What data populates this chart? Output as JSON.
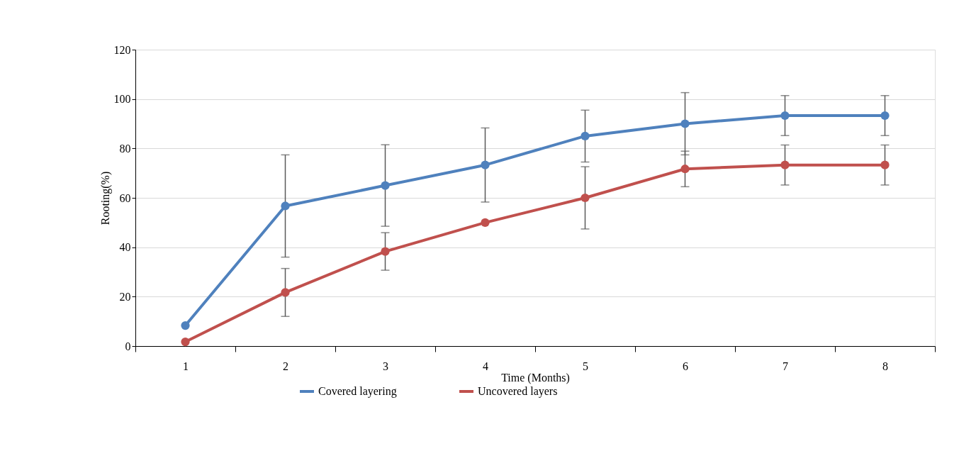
{
  "chart_data": {
    "type": "line",
    "xlabel": "Time (Months)",
    "ylabel": "Rooting(%)",
    "categories": [
      "1",
      "2",
      "3",
      "4",
      "5",
      "6",
      "7",
      "8"
    ],
    "ylim": [
      0,
      120
    ],
    "yticks": [
      0,
      20,
      40,
      60,
      80,
      100,
      120
    ],
    "grid": "y",
    "legend": "bottom",
    "marker": "circle",
    "line_style": "solid",
    "series": [
      {
        "name": "Covered layering",
        "color": "#4f81bd",
        "values": [
          8.3,
          56.7,
          65,
          73.3,
          85,
          90,
          93.3,
          93.3
        ],
        "errors": [
          null,
          20.7,
          16.5,
          15,
          10.5,
          12.6,
          8.1,
          8.1
        ]
      },
      {
        "name": "Uncovered layers",
        "color": "#c0504d",
        "values": [
          1.7,
          21.7,
          38.3,
          50,
          60,
          71.7,
          73.3,
          73.3
        ],
        "errors": [
          null,
          9.7,
          7.6,
          null,
          12.6,
          7.2,
          8.1,
          8.1
        ]
      }
    ]
  }
}
